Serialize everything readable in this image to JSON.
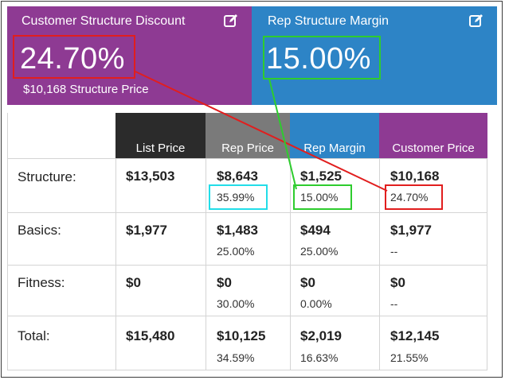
{
  "discount_card": {
    "title": "Customer Structure Discount",
    "value": "24.70%",
    "sub": "$10,168 Structure Price",
    "icon": "edit-icon"
  },
  "margin_card": {
    "title": "Rep Structure Margin",
    "value": "15.00%",
    "icon": "edit-icon"
  },
  "table": {
    "headers": {
      "list": "List Price",
      "rep": "Rep Price",
      "margin": "Rep Margin",
      "customer": "Customer Price"
    },
    "rows": [
      {
        "label": "Structure:",
        "list": "$13,503",
        "rep": "$8,643",
        "rep_pct": "35.99%",
        "margin": "$1,525",
        "margin_pct": "15.00%",
        "cust": "$10,168",
        "cust_pct": "24.70%"
      },
      {
        "label": "Basics:",
        "list": "$1,977",
        "rep": "$1,483",
        "rep_pct": "25.00%",
        "margin": "$494",
        "margin_pct": "25.00%",
        "cust": "$1,977",
        "cust_pct": "--"
      },
      {
        "label": "Fitness:",
        "list": "$0",
        "rep": "$0",
        "rep_pct": "30.00%",
        "margin": "$0",
        "margin_pct": "0.00%",
        "cust": "$0",
        "cust_pct": "--"
      },
      {
        "label": "Total:",
        "list": "$15,480",
        "rep": "$10,125",
        "rep_pct": "34.59%",
        "margin": "$2,019",
        "margin_pct": "16.63%",
        "cust": "$12,145",
        "cust_pct": "21.55%"
      }
    ]
  },
  "colors": {
    "purple": "#8e3a93",
    "blue": "#2d84c6",
    "dark_header": "#2b2b2b",
    "gray_header": "#7a7a7a",
    "highlight_red": "#e11e1e",
    "highlight_green": "#2ecc2e",
    "highlight_cyan": "#22dde8"
  }
}
